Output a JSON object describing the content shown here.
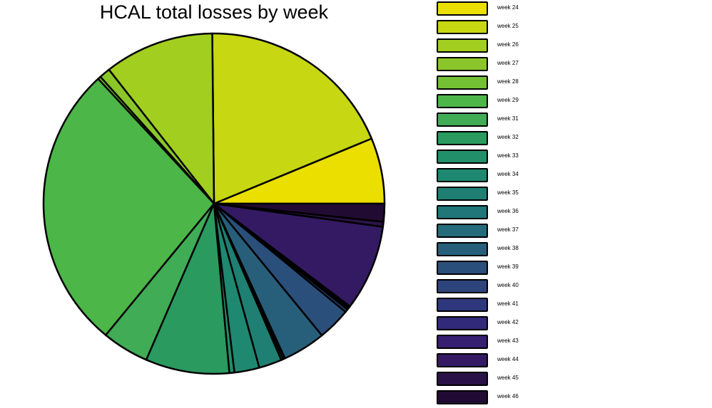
{
  "chart_data": {
    "type": "pie",
    "title": "HCAL total losses by week",
    "legend_position": "right",
    "slices": [
      {
        "label": "week 24",
        "value": 6.6,
        "color": "#ebdf00"
      },
      {
        "label": "week 25",
        "value": 20.0,
        "color": "#c7d711"
      },
      {
        "label": "week 26",
        "value": 11.0,
        "color": "#a2ce1f"
      },
      {
        "label": "week 27",
        "value": 1.1,
        "color": "#8ac62a"
      },
      {
        "label": "week 28",
        "value": 0.3,
        "color": "#73c034"
      },
      {
        "label": "week 29",
        "value": 28.7,
        "color": "#4cb648"
      },
      {
        "label": "week 31",
        "value": 4.7,
        "color": "#40ac55"
      },
      {
        "label": "week 32",
        "value": 8.4,
        "color": "#2a9a5f"
      },
      {
        "label": "week 33",
        "value": 0.5,
        "color": "#21906a"
      },
      {
        "label": "week 34",
        "value": 2.5,
        "color": "#1e8870"
      },
      {
        "label": "week 35",
        "value": 2.3,
        "color": "#1f7f73"
      },
      {
        "label": "week 36",
        "value": 0.2,
        "color": "#21767a"
      },
      {
        "label": "week 37",
        "value": 0.2,
        "color": "#246c7c"
      },
      {
        "label": "week 38",
        "value": 4.3,
        "color": "#275f7b"
      },
      {
        "label": "week 39",
        "value": 3.3,
        "color": "#2a4f7a"
      },
      {
        "label": "week 40",
        "value": 0.3,
        "color": "#2d437c"
      },
      {
        "label": "week 41",
        "value": 0.2,
        "color": "#2f377c"
      },
      {
        "label": "week 42",
        "value": 0.1,
        "color": "#31297a"
      },
      {
        "label": "week 43",
        "value": 0.1,
        "color": "#361e71"
      },
      {
        "label": "week 44",
        "value": 8.6,
        "color": "#341a63"
      },
      {
        "label": "week 45",
        "value": 0.5,
        "color": "#2a1247"
      },
      {
        "label": "week 46",
        "value": 1.8,
        "color": "#220b33"
      }
    ]
  }
}
